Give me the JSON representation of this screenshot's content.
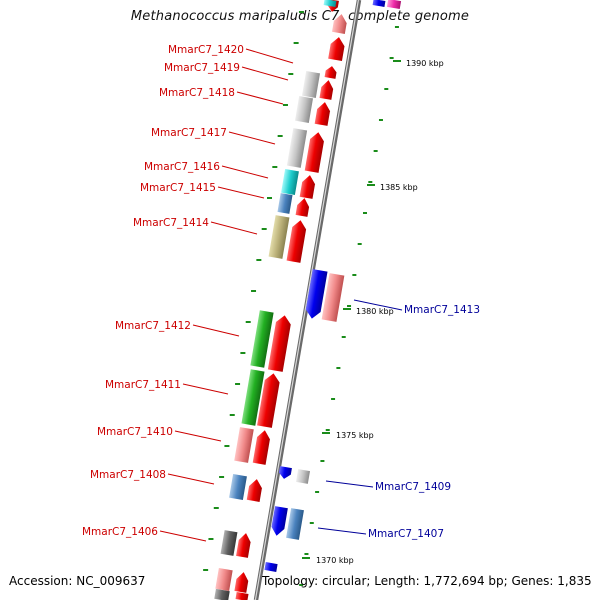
{
  "title": "Methanococcus maripaludis C7, complete genome",
  "footer": {
    "accession": "Accession: NC_009637",
    "topology": "Topology: circular; Length: 1,772,694 bp; Genes: 1,835"
  },
  "colors": {
    "forward_label": "#cc0000",
    "reverse_label": "#000099",
    "backbone": "#8a8a8a",
    "tick": "#1a8c1a"
  },
  "scale_labels": [
    "1390 kbp",
    "1385 kbp",
    "1380 kbp",
    "1375 kbp",
    "1370 kbp"
  ],
  "genes_left": [
    "MmarC7_1420",
    "MmarC7_1419",
    "MmarC7_1418",
    "MmarC7_1417",
    "MmarC7_1416",
    "MmarC7_1415",
    "MmarC7_1414",
    "MmarC7_1412",
    "MmarC7_1411",
    "MmarC7_1410",
    "MmarC7_1408",
    "MmarC7_1406"
  ],
  "genes_right": [
    "MmarC7_1413",
    "MmarC7_1409",
    "MmarC7_1407"
  ]
}
